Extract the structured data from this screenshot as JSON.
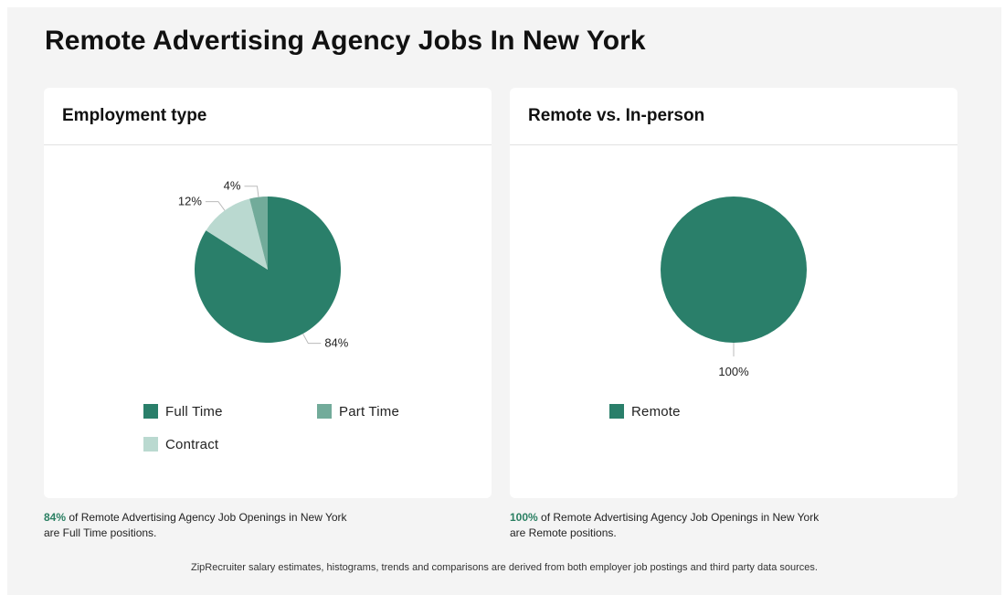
{
  "page": {
    "title": "Remote Advertising Agency Jobs In New York",
    "footer": "ZipRecruiter salary estimates, histograms, trends and comparisons are derived from both employer job postings and third party data sources."
  },
  "colors": {
    "full_time": "#2a7f6a",
    "part_time": "#72ab9a",
    "contract": "#bad9d0",
    "remote": "#2a7f6a",
    "accent_text": "#2a7f62"
  },
  "employment": {
    "title": "Employment type",
    "caption_pct": "84%",
    "caption_rest": " of Remote Advertising Agency Job Openings in New York are Full Time positions."
  },
  "remote": {
    "title": "Remote vs. In-person",
    "caption_pct": "100%",
    "caption_rest": " of Remote Advertising Agency Job Openings in New York are Remote positions."
  },
  "chart_data": [
    {
      "type": "pie",
      "title": "Employment type",
      "categories": [
        "Full Time",
        "Contract",
        "Part Time"
      ],
      "values": [
        84,
        12,
        4
      ],
      "labels": [
        "84%",
        "12%",
        "4%"
      ],
      "colors": [
        "#2a7f6a",
        "#bad9d0",
        "#72ab9a"
      ],
      "legend": [
        "Full Time",
        "Part Time",
        "Contract"
      ],
      "legend_colors": [
        "#2a7f6a",
        "#72ab9a",
        "#bad9d0"
      ]
    },
    {
      "type": "pie",
      "title": "Remote vs. In-person",
      "categories": [
        "Remote"
      ],
      "values": [
        100
      ],
      "labels": [
        "100%"
      ],
      "colors": [
        "#2a7f6a"
      ],
      "legend": [
        "Remote"
      ],
      "legend_colors": [
        "#2a7f6a"
      ]
    }
  ]
}
